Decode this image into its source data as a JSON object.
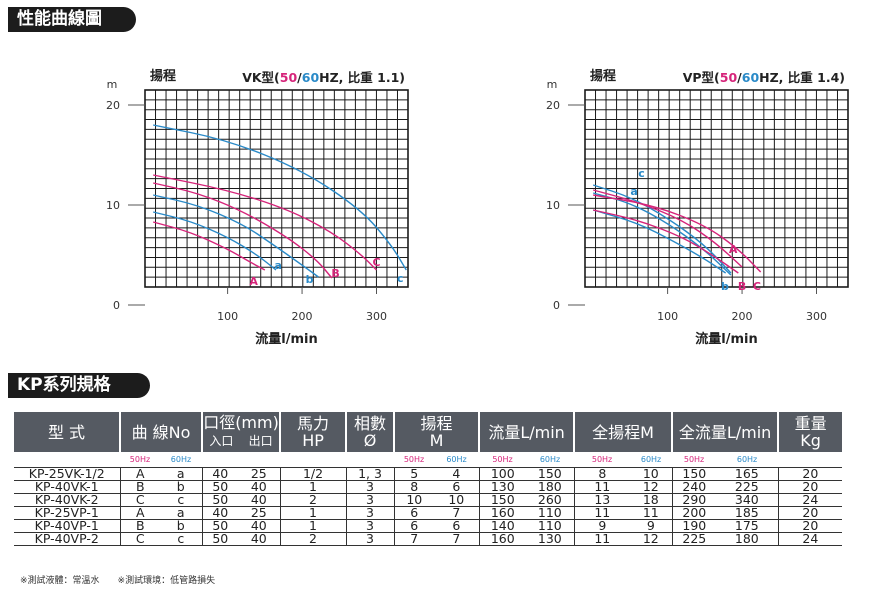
{
  "section1_title": "性能曲線圖",
  "section2_title": "KP系列規格",
  "colors": {
    "c50": "#d6247a",
    "c60": "#2a8ac8",
    "bg_tab": "#1c1c1c",
    "header_bg": "#555a62"
  },
  "chart_data": [
    {
      "type": "line",
      "head_label": "揚程",
      "title_prefix": "VK型(",
      "title_50": "50",
      "title_slash": "/",
      "title_60": "60",
      "title_suffix": "HZ, 比重 1.1)",
      "ylabel": "m",
      "xlabel": "流量l/min",
      "xlim": [
        -15,
        345
      ],
      "ylim": [
        0,
        21
      ],
      "xticks": [
        "100",
        "200",
        "300"
      ],
      "xtick_values": [
        100,
        200,
        300
      ],
      "yticks": [
        "0",
        "10",
        "20"
      ],
      "ytick_values": [
        0,
        10,
        20
      ],
      "grid": true,
      "series": [
        {
          "name": "A",
          "color": "#d6247a",
          "points": [
            [
              0,
              8.3
            ],
            [
              50,
              7.3
            ],
            [
              100,
              5.6
            ],
            [
              130,
              4.3
            ],
            [
              150,
              3.5
            ]
          ],
          "label_at": [
            135,
            2.4
          ]
        },
        {
          "name": "a",
          "color": "#2a8ac8",
          "points": [
            [
              0,
              9.3
            ],
            [
              50,
              8.4
            ],
            [
              100,
              6.8
            ],
            [
              140,
              5.0
            ],
            [
              165,
              3.5
            ]
          ],
          "label_at": [
            168,
            4.0
          ]
        },
        {
          "name": "b",
          "color": "#2a8ac8",
          "points": [
            [
              0,
              11.0
            ],
            [
              60,
              10.0
            ],
            [
              120,
              8.1
            ],
            [
              160,
              6.1
            ],
            [
              200,
              4.0
            ],
            [
              222,
              2.8
            ]
          ],
          "label_at": [
            210,
            2.6
          ]
        },
        {
          "name": "B",
          "color": "#d6247a",
          "points": [
            [
              0,
              12.2
            ],
            [
              60,
              11.2
            ],
            [
              120,
              9.4
            ],
            [
              180,
              6.8
            ],
            [
              220,
              4.5
            ],
            [
              240,
              2.7
            ]
          ],
          "label_at": [
            245,
            3.2
          ]
        },
        {
          "name": "C",
          "color": "#d6247a",
          "points": [
            [
              0,
              13.0
            ],
            [
              100,
              11.5
            ],
            [
              180,
              9.6
            ],
            [
              240,
              7.3
            ],
            [
              280,
              5.0
            ],
            [
              300,
              3.5
            ]
          ],
          "label_at": [
            300,
            4.3
          ]
        },
        {
          "name": "c",
          "color": "#2a8ac8",
          "points": [
            [
              0,
              18.0
            ],
            [
              100,
              16.5
            ],
            [
              200,
              13.5
            ],
            [
              280,
              9.5
            ],
            [
              320,
              6.0
            ],
            [
              340,
              3.5
            ]
          ],
          "label_at": [
            332,
            2.7
          ]
        }
      ]
    },
    {
      "type": "line",
      "head_label": "揚程",
      "title_prefix": "VP型(",
      "title_50": "50",
      "title_slash": "/",
      "title_60": "60",
      "title_suffix": "HZ, 比重 1.4)",
      "ylabel": "m",
      "xlabel": "流量l/min",
      "xlim": [
        -15,
        345
      ],
      "ylim": [
        0,
        21
      ],
      "xticks": [
        "100",
        "200",
        "300"
      ],
      "xtick_values": [
        100,
        200,
        300
      ],
      "yticks": [
        "0",
        "10",
        "20"
      ],
      "ytick_values": [
        0,
        10,
        20
      ],
      "grid": true,
      "series": [
        {
          "name": "a",
          "color": "#2a8ac8",
          "points": [
            [
              0,
              11.2
            ],
            [
              50,
              10.2
            ],
            [
              100,
              8.2
            ],
            [
              150,
              5.5
            ],
            [
              185,
              3.0
            ]
          ],
          "label_at": [
            55,
            11.4
          ]
        },
        {
          "name": "c",
          "color": "#2a8ac8",
          "points": [
            [
              0,
              12.0
            ],
            [
              50,
              10.8
            ],
            [
              100,
              8.7
            ],
            [
              150,
              6.0
            ],
            [
              185,
              3.2
            ]
          ],
          "label_at": [
            65,
            13.2
          ]
        },
        {
          "name": "A",
          "color": "#d6247a",
          "points": [
            [
              0,
              11.5
            ],
            [
              60,
              10.3
            ],
            [
              120,
              8.5
            ],
            [
              165,
              6.2
            ],
            [
              200,
              3.8
            ]
          ],
          "label_at": [
            188,
            5.6
          ]
        },
        {
          "name": "b",
          "color": "#2a8ac8",
          "points": [
            [
              0,
              9.5
            ],
            [
              60,
              8.2
            ],
            [
              110,
              6.3
            ],
            [
              150,
              4.6
            ],
            [
              178,
              3.2
            ]
          ],
          "label_at": [
            177,
            1.9
          ]
        },
        {
          "name": "B",
          "color": "#d6247a",
          "points": [
            [
              0,
              9.5
            ],
            [
              60,
              8.5
            ],
            [
              120,
              6.8
            ],
            [
              160,
              5.0
            ],
            [
              195,
              3.2
            ]
          ],
          "label_at": [
            200,
            1.9
          ]
        },
        {
          "name": "C",
          "color": "#d6247a",
          "points": [
            [
              0,
              11.0
            ],
            [
              80,
              10.0
            ],
            [
              150,
              8.0
            ],
            [
              195,
              5.6
            ],
            [
              225,
              3.3
            ]
          ],
          "label_at": [
            220,
            1.9
          ]
        }
      ]
    }
  ],
  "table": {
    "headers": {
      "model": "型 式",
      "curve": "曲 線No",
      "port_top": "口徑(mm)",
      "port_in": "入口",
      "port_out": "出口",
      "hp_top": "馬力",
      "hp_bottom": "HP",
      "phase_top": "相數",
      "phase_bottom": "Ø",
      "head_top": "揚程",
      "head_bottom": "M",
      "flow": "流量L/min",
      "total_head": "全揚程M",
      "total_flow": "全流量L/min",
      "weight_top": "重量",
      "weight_bottom": "Kg"
    },
    "hz": {
      "h50": "50Hz",
      "h60": "60Hz"
    },
    "rows": [
      {
        "model": "KP-25VK-1/2",
        "c50": "A",
        "c60": "a",
        "in": "40",
        "out": "25",
        "hp": "1/2",
        "phase": "1, 3",
        "h50": "5",
        "h60": "4",
        "f50": "100",
        "f60": "150",
        "th50": "8",
        "th60": "10",
        "tf50": "150",
        "tf60": "165",
        "kg": "20"
      },
      {
        "model": "KP-40VK-1",
        "c50": "B",
        "c60": "b",
        "in": "50",
        "out": "40",
        "hp": "1",
        "phase": "3",
        "h50": "8",
        "h60": "6",
        "f50": "130",
        "f60": "180",
        "th50": "11",
        "th60": "12",
        "tf50": "240",
        "tf60": "225",
        "kg": "20"
      },
      {
        "model": "KP-40VK-2",
        "c50": "C",
        "c60": "c",
        "in": "50",
        "out": "40",
        "hp": "2",
        "phase": "3",
        "h50": "10",
        "h60": "10",
        "f50": "150",
        "f60": "260",
        "th50": "13",
        "th60": "18",
        "tf50": "290",
        "tf60": "340",
        "kg": "24"
      },
      {
        "model": "KP-25VP-1",
        "c50": "A",
        "c60": "a",
        "in": "40",
        "out": "25",
        "hp": "1",
        "phase": "3",
        "h50": "6",
        "h60": "7",
        "f50": "160",
        "f60": "110",
        "th50": "11",
        "th60": "11",
        "tf50": "200",
        "tf60": "185",
        "kg": "20"
      },
      {
        "model": "KP-40VP-1",
        "c50": "B",
        "c60": "b",
        "in": "50",
        "out": "40",
        "hp": "1",
        "phase": "3",
        "h50": "6",
        "h60": "6",
        "f50": "140",
        "f60": "110",
        "th50": "9",
        "th60": "9",
        "tf50": "190",
        "tf60": "175",
        "kg": "20"
      },
      {
        "model": "KP-40VP-2",
        "c50": "C",
        "c60": "c",
        "in": "50",
        "out": "40",
        "hp": "2",
        "phase": "3",
        "h50": "7",
        "h60": "7",
        "f50": "160",
        "f60": "130",
        "th50": "11",
        "th60": "12",
        "tf50": "225",
        "tf60": "180",
        "kg": "24"
      }
    ]
  },
  "note": "※測試液體：常溫水　　※測試環境：低管路損失"
}
